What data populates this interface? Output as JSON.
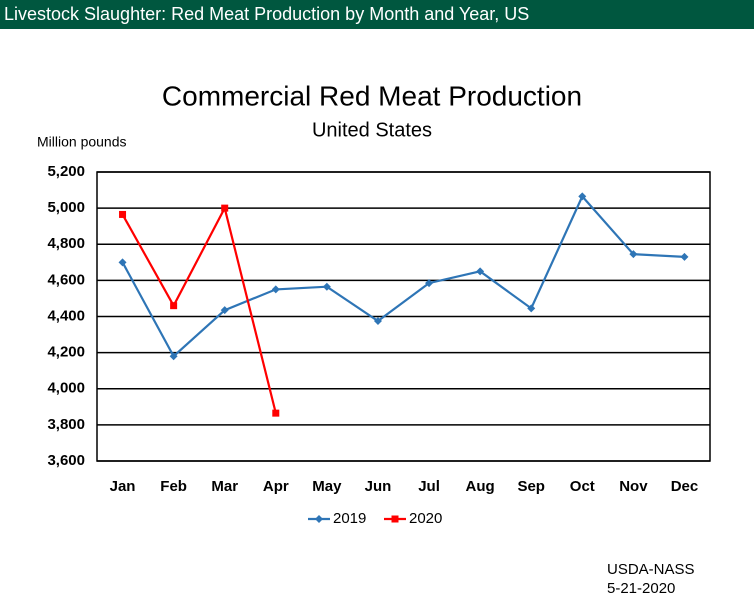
{
  "page_title": "Livestock Slaughter: Red Meat Production by Month and Year, US",
  "chart_data": {
    "type": "line",
    "title": "Commercial Red Meat Production",
    "subtitle": "United States",
    "y_label": "Million pounds",
    "categories": [
      "Jan",
      "Feb",
      "Mar",
      "Apr",
      "May",
      "Jun",
      "Jul",
      "Aug",
      "Sep",
      "Oct",
      "Nov",
      "Dec"
    ],
    "series": [
      {
        "name": "2019",
        "color": "#2e75b6",
        "marker": "diamond",
        "values": [
          4700,
          4180,
          4435,
          4550,
          4565,
          4375,
          4585,
          4650,
          4445,
          5065,
          4745,
          4730
        ]
      },
      {
        "name": "2020",
        "color": "#ff0000",
        "marker": "square",
        "values": [
          4965,
          4460,
          5000,
          3865,
          null,
          null,
          null,
          null,
          null,
          null,
          null,
          null
        ]
      }
    ],
    "ylim": [
      3600,
      5200
    ],
    "yticks": [
      {
        "value": 3600,
        "label": "3,600"
      },
      {
        "value": 3800,
        "label": "3,800"
      },
      {
        "value": 4000,
        "label": "4,000"
      },
      {
        "value": 4200,
        "label": "4,200"
      },
      {
        "value": 4400,
        "label": "4,400"
      },
      {
        "value": 4600,
        "label": "4,600"
      },
      {
        "value": 4800,
        "label": "4,800"
      },
      {
        "value": 5000,
        "label": "5,000"
      },
      {
        "value": 5200,
        "label": "5,200"
      }
    ],
    "grid": true,
    "legend": "bottom",
    "source": [
      "USDA-NASS",
      "5-21-2020"
    ]
  }
}
